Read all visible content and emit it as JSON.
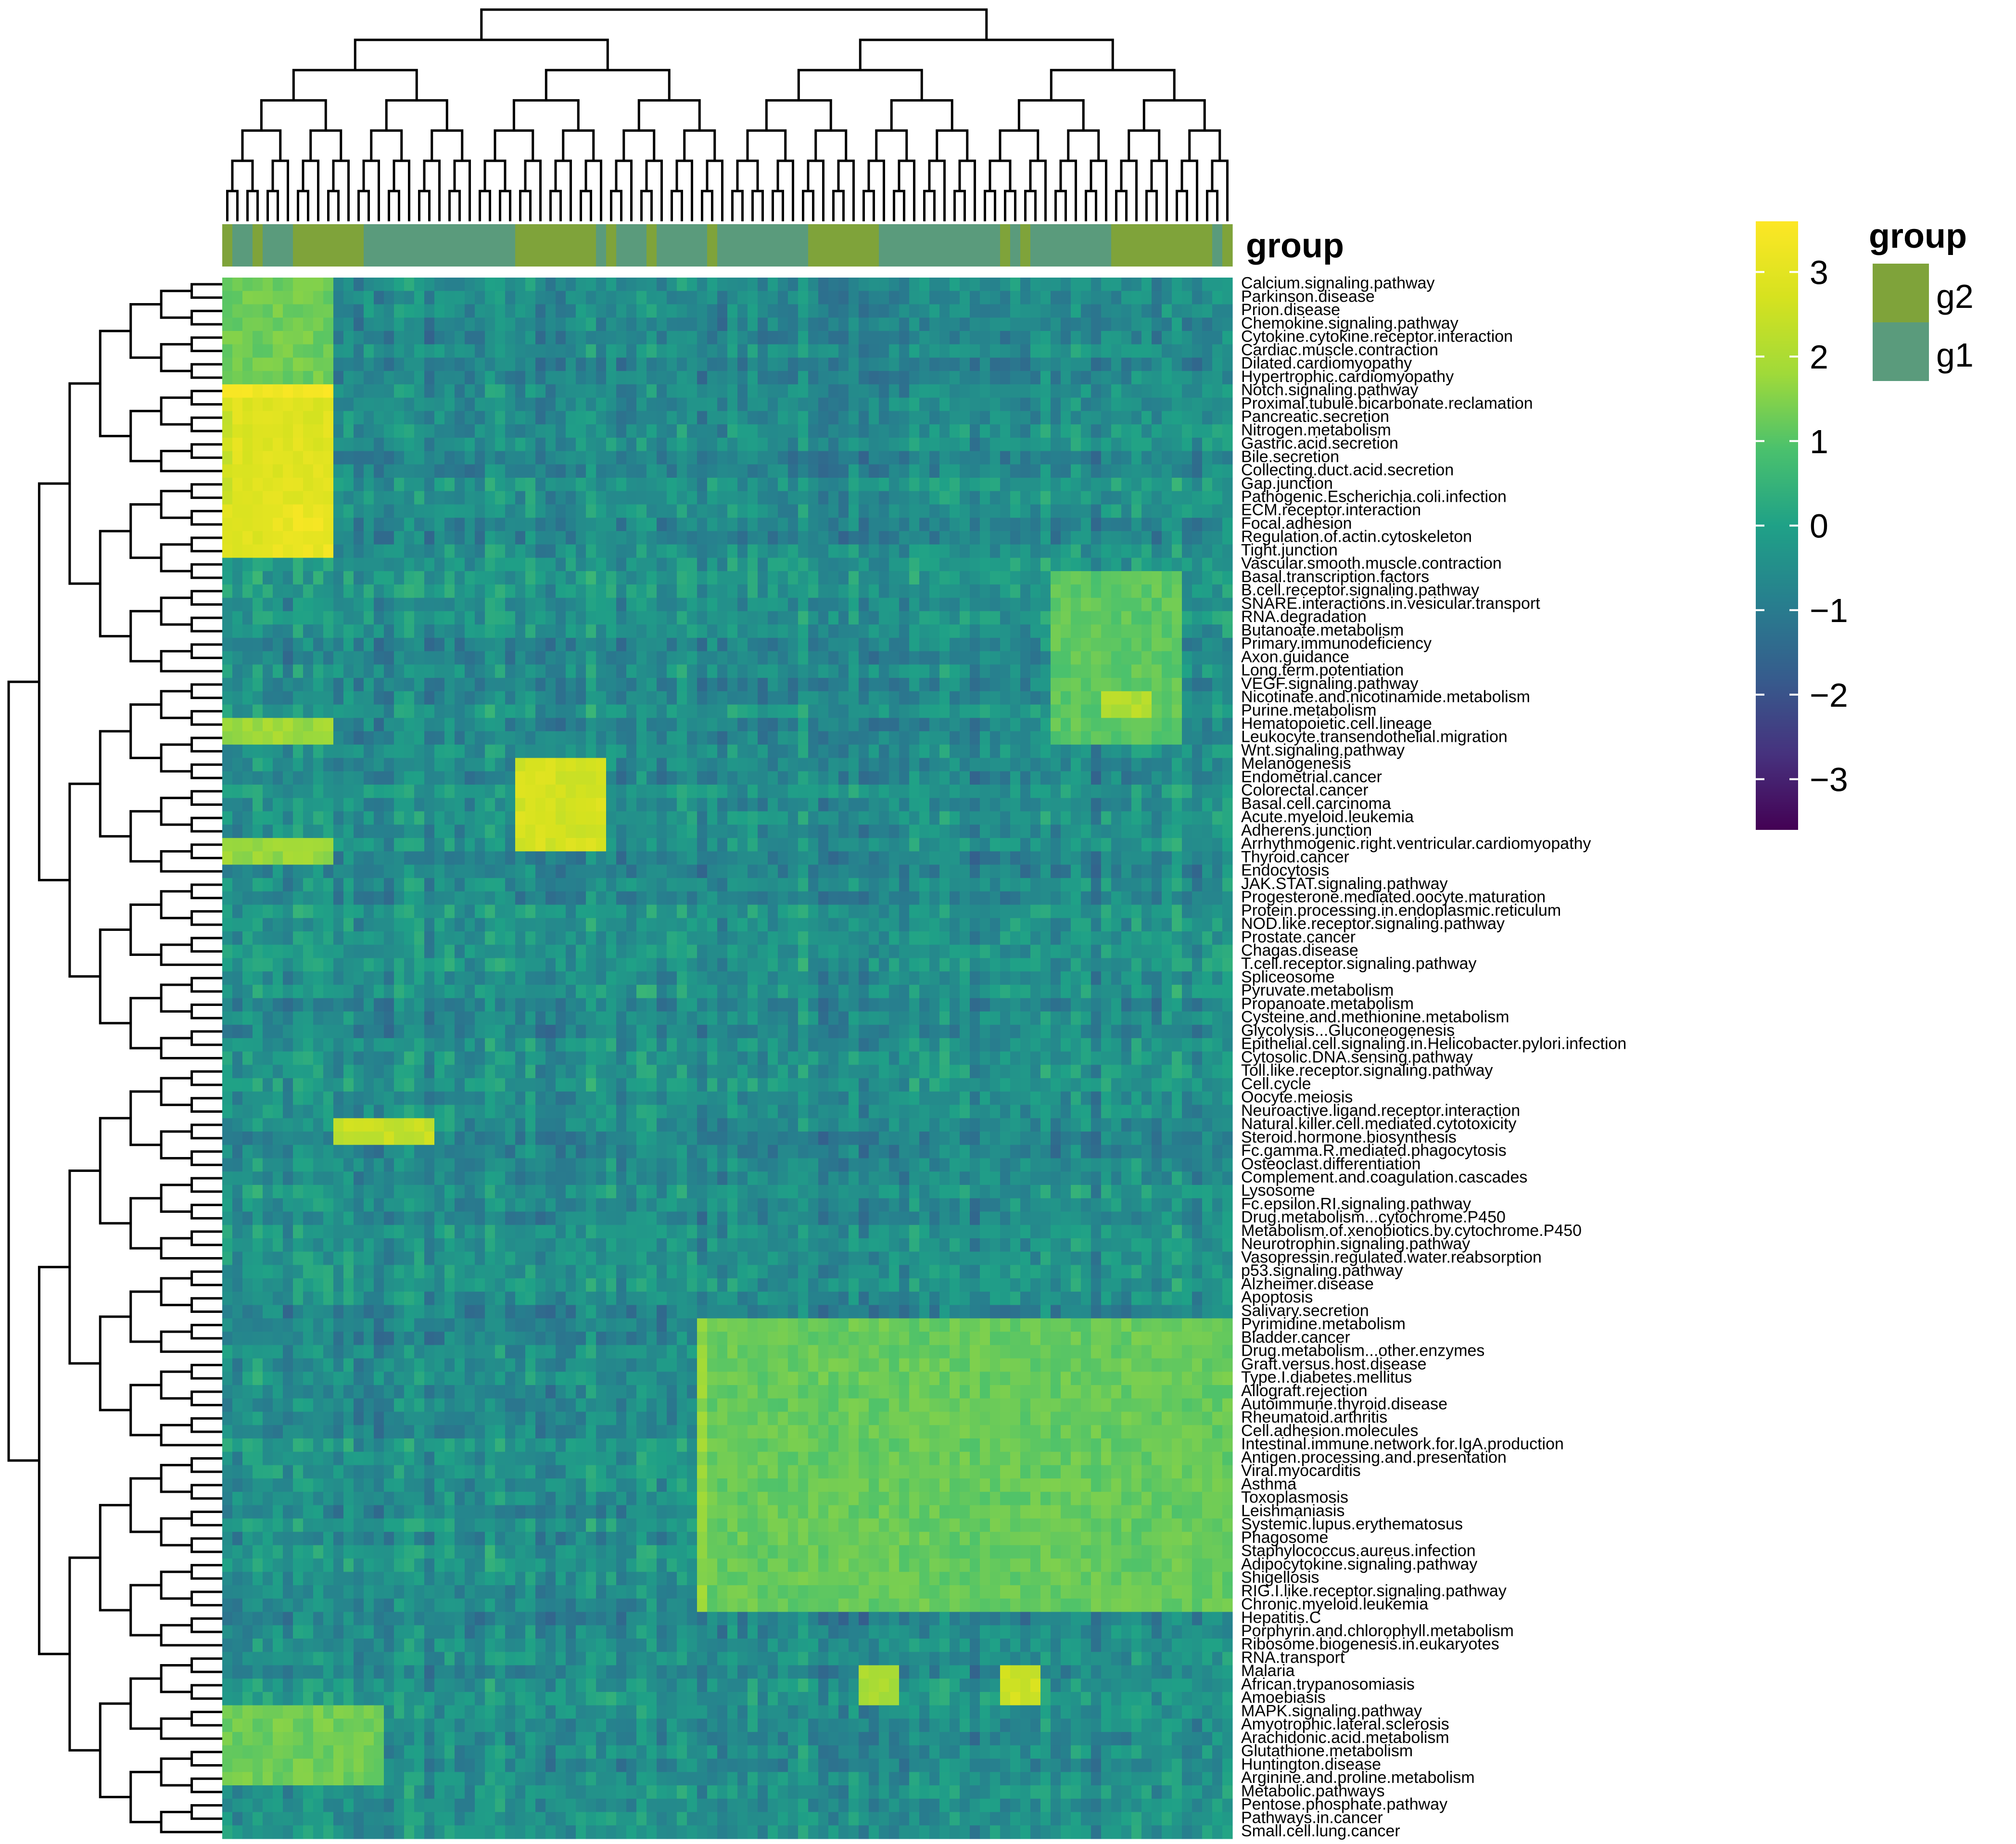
{
  "chart_data": {
    "type": "heatmap",
    "title": "",
    "columns": 100,
    "annotation": {
      "title": "group",
      "levels": [
        {
          "name": "g2",
          "color": "#7fa33a"
        },
        {
          "name": "g1",
          "color": "#5a9b7c"
        }
      ]
    },
    "colorbar": {
      "range": [
        -3.6,
        3.6
      ],
      "ticks": [
        {
          "value": 3,
          "label": "3"
        },
        {
          "value": 2,
          "label": "2"
        },
        {
          "value": 1,
          "label": "1"
        },
        {
          "value": 0,
          "label": "0"
        },
        {
          "value": -1,
          "label": "−1"
        },
        {
          "value": -2,
          "label": "−2"
        },
        {
          "value": -3,
          "label": "−3"
        }
      ],
      "palette": "viridis"
    },
    "rows": [
      "Calcium.signaling.pathway",
      "Parkinson.disease",
      "Prion.disease",
      "Chemokine.signaling.pathway",
      "Cytokine.cytokine.receptor.interaction",
      "Cardiac.muscle.contraction",
      "Dilated.cardiomyopathy",
      "Hypertrophic.cardiomyopathy",
      "Notch.signaling.pathway",
      "Proximal.tubule.bicarbonate.reclamation",
      "Pancreatic.secretion",
      "Nitrogen.metabolism",
      "Gastric.acid.secretion",
      "Bile.secretion",
      "Collecting.duct.acid.secretion",
      "Gap.junction",
      "Pathogenic.Escherichia.coli.infection",
      "ECM.receptor.interaction",
      "Focal.adhesion",
      "Regulation.of.actin.cytoskeleton",
      "Tight.junction",
      "Vascular.smooth.muscle.contraction",
      "Basal.transcription.factors",
      "B.cell.receptor.signaling.pathway",
      "SNARE.interactions.in.vesicular.transport",
      "RNA.degradation",
      "Butanoate.metabolism",
      "Primary.immunodeficiency",
      "Axon.guidance",
      "Long.term.potentiation",
      "VEGF.signaling.pathway",
      "Nicotinate.and.nicotinamide.metabolism",
      "Purine.metabolism",
      "Hematopoietic.cell.lineage",
      "Leukocyte.transendothelial.migration",
      "Wnt.signaling.pathway",
      "Melanogenesis",
      "Endometrial.cancer",
      "Colorectal.cancer",
      "Basal.cell.carcinoma",
      "Acute.myeloid.leukemia",
      "Adherens.junction",
      "Arrhythmogenic.right.ventricular.cardiomyopathy",
      "Thyroid.cancer",
      "Endocytosis",
      "JAK.STAT.signaling.pathway",
      "Progesterone.mediated.oocyte.maturation",
      "Protein.processing.in.endoplasmic.reticulum",
      "NOD.like.receptor.signaling.pathway",
      "Prostate.cancer",
      "Chagas.disease",
      "T.cell.receptor.signaling.pathway",
      "Spliceosome",
      "Pyruvate.metabolism",
      "Propanoate.metabolism",
      "Cysteine.and.methionine.metabolism",
      "Glycolysis...Gluconeogenesis",
      "Epithelial.cell.signaling.in.Helicobacter.pylori.infection",
      "Cytosolic.DNA.sensing.pathway",
      "Toll.like.receptor.signaling.pathway",
      "Cell.cycle",
      "Oocyte.meiosis",
      "Neuroactive.ligand.receptor.interaction",
      "Natural.killer.cell.mediated.cytotoxicity",
      "Steroid.hormone.biosynthesis",
      "Fc.gamma.R.mediated.phagocytosis",
      "Osteoclast.differentiation",
      "Complement.and.coagulation.cascades",
      "Lysosome",
      "Fc.epsilon.RI.signaling.pathway",
      "Drug.metabolism...cytochrome.P450",
      "Metabolism.of.xenobiotics.by.cytochrome.P450",
      "Neurotrophin.signaling.pathway",
      "Vasopressin.regulated.water.reabsorption",
      "p53.signaling.pathway",
      "Alzheimer.disease",
      "Apoptosis",
      "Salivary.secretion",
      "Pyrimidine.metabolism",
      "Bladder.cancer",
      "Drug.metabolism...other.enzymes",
      "Graft.versus.host.disease",
      "Type.I.diabetes.mellitus",
      "Allograft.rejection",
      "Autoimmune.thyroid.disease",
      "Rheumatoid.arthritis",
      "Cell.adhesion.molecules",
      "Intestinal.immune.network.for.IgA.production",
      "Antigen.processing.and.presentation",
      "Viral.myocarditis",
      "Asthma",
      "Toxoplasmosis",
      "Leishmaniasis",
      "Systemic.lupus.erythematosus",
      "Phagosome",
      "Staphylococcus.aureus.infection",
      "Adipocytokine.signaling.pathway",
      "Shigellosis",
      "RIG.I.like.receptor.signaling.pathway",
      "Chronic.myeloid.leukemia",
      "Hepatitis.C",
      "Porphyrin.and.chlorophyll.metabolism",
      "Ribosome.biogenesis.in.eukaryotes",
      "RNA.transport",
      "Malaria",
      "African.trypanosomiasis",
      "Amoebiasis",
      "MAPK.signaling.pathway",
      "Amyotrophic.lateral.sclerosis",
      "Arachidonic.acid.metabolism",
      "Glutathione.metabolism",
      "Huntington.disease",
      "Arginine.and.proline.metabolism",
      "Metabolic.pathways",
      "Pentose.phosphate.pathway",
      "Pathways.in.cancer",
      "Small.cell.lung.cancer"
    ],
    "blocks": [
      {
        "rows": [
          8,
          20
        ],
        "cols": [
          0,
          10
        ],
        "value": 2.9
      },
      {
        "rows": [
          8,
          8
        ],
        "cols": [
          0,
          10
        ],
        "value": 3.4
      },
      {
        "rows": [
          9,
          16
        ],
        "cols": [
          0,
          0
        ],
        "value": 2.5
      },
      {
        "rows": [
          17,
          20
        ],
        "cols": [
          4,
          10
        ],
        "value": 3.2
      },
      {
        "rows": [
          0,
          7
        ],
        "cols": [
          0,
          10
        ],
        "value": 1.3
      },
      {
        "rows": [
          33,
          34
        ],
        "cols": [
          0,
          10
        ],
        "value": 1.8
      },
      {
        "rows": [
          42,
          43
        ],
        "cols": [
          0,
          10
        ],
        "value": 1.7
      },
      {
        "rows": [
          36,
          42
        ],
        "cols": [
          29,
          37
        ],
        "value": 2.7
      },
      {
        "rows": [
          63,
          64
        ],
        "cols": [
          11,
          20
        ],
        "value": 2.4
      },
      {
        "rows": [
          78,
          99
        ],
        "cols": [
          47,
          100
        ],
        "value": 1.2
      },
      {
        "rows": [
          78,
          99
        ],
        "cols": [
          47,
          47
        ],
        "value": 1.7
      },
      {
        "rows": [
          22,
          34
        ],
        "cols": [
          82,
          94
        ],
        "value": 1.1
      },
      {
        "rows": [
          31,
          32
        ],
        "cols": [
          87,
          91
        ],
        "value": 2.1
      },
      {
        "rows": [
          107,
          112
        ],
        "cols": [
          0,
          15
        ],
        "value": 1.3
      },
      {
        "rows": [
          104,
          106
        ],
        "cols": [
          77,
          80
        ],
        "value": 2.6
      },
      {
        "rows": [
          104,
          106
        ],
        "cols": [
          63,
          66
        ],
        "value": 2.0
      }
    ],
    "column_groups": [
      "g2",
      "g1",
      "g1",
      "g2",
      "g1",
      "g1",
      "g1",
      "g2",
      "g2",
      "g2",
      "g2",
      "g2",
      "g2",
      "g2",
      "g1",
      "g1",
      "g1",
      "g1",
      "g1",
      "g1",
      "g1",
      "g1",
      "g1",
      "g1",
      "g1",
      "g1",
      "g1",
      "g1",
      "g1",
      "g2",
      "g2",
      "g2",
      "g2",
      "g2",
      "g2",
      "g2",
      "g2",
      "g1",
      "g2",
      "g1",
      "g1",
      "g1",
      "g2",
      "g1",
      "g1",
      "g1",
      "g1",
      "g1",
      "g2",
      "g1",
      "g1",
      "g1",
      "g1",
      "g1",
      "g1",
      "g1",
      "g1",
      "g1",
      "g2",
      "g2",
      "g2",
      "g2",
      "g2",
      "g2",
      "g2",
      "g1",
      "g1",
      "g1",
      "g1",
      "g1",
      "g1",
      "g1",
      "g1",
      "g1",
      "g1",
      "g1",
      "g1",
      "g2",
      "g1",
      "g2",
      "g1",
      "g1",
      "g1",
      "g1",
      "g1",
      "g1",
      "g1",
      "g1",
      "g2",
      "g2",
      "g2",
      "g2",
      "g2",
      "g2",
      "g2",
      "g2",
      "g2",
      "g2",
      "g1",
      "g2"
    ]
  }
}
